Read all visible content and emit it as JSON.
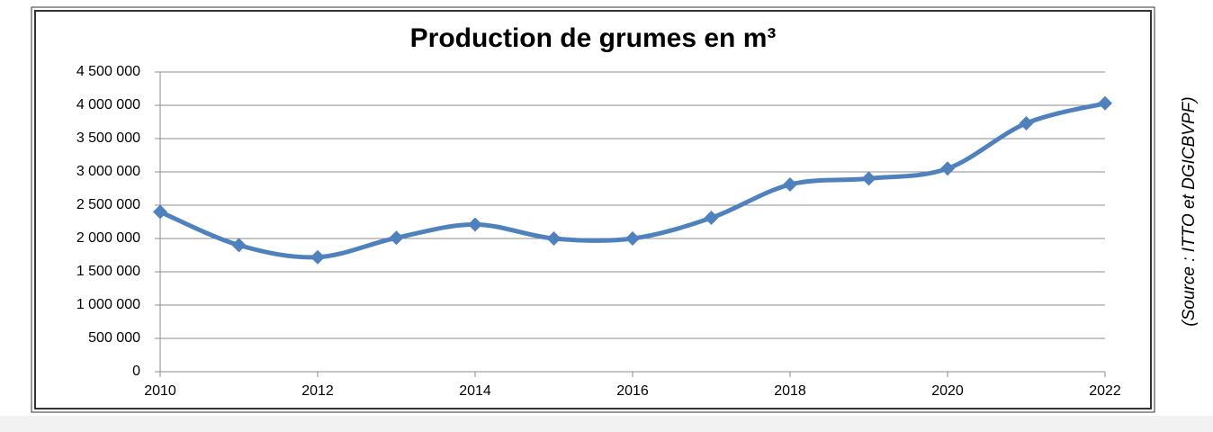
{
  "chart_data": {
    "type": "line",
    "title": "Production de grumes en m³",
    "source": "(Source : ITTO et DGICBVPF)",
    "x": [
      2010,
      2011,
      2012,
      2013,
      2014,
      2015,
      2016,
      2017,
      2018,
      2019,
      2020,
      2021,
      2022
    ],
    "series": [
      {
        "name": "Production",
        "color": "#4f81bd",
        "values": [
          2400000,
          1900000,
          1720000,
          2010000,
          2210000,
          2000000,
          2000000,
          2310000,
          2810000,
          2900000,
          3050000,
          3730000,
          4030000
        ]
      }
    ],
    "xlim": [
      2010,
      2022
    ],
    "xticks": [
      2010,
      2012,
      2014,
      2016,
      2018,
      2020,
      2022
    ],
    "ylim": [
      0,
      4500000
    ],
    "yticks": [
      0,
      {
        "value": 500000,
        "label": "500 000"
      },
      {
        "value": 1000000,
        "label": "1 000 000"
      },
      {
        "value": 1500000,
        "label": "1 500 000"
      },
      {
        "value": 2000000,
        "label": "2 000 000"
      },
      {
        "value": 2500000,
        "label": "2 500 000"
      },
      {
        "value": 3000000,
        "label": "3 000 000"
      },
      {
        "value": 3500000,
        "label": "3 500 000"
      },
      {
        "value": 4000000,
        "label": "4 000 000"
      },
      {
        "value": 4500000,
        "label": "4 500 000"
      }
    ],
    "grid": true
  }
}
